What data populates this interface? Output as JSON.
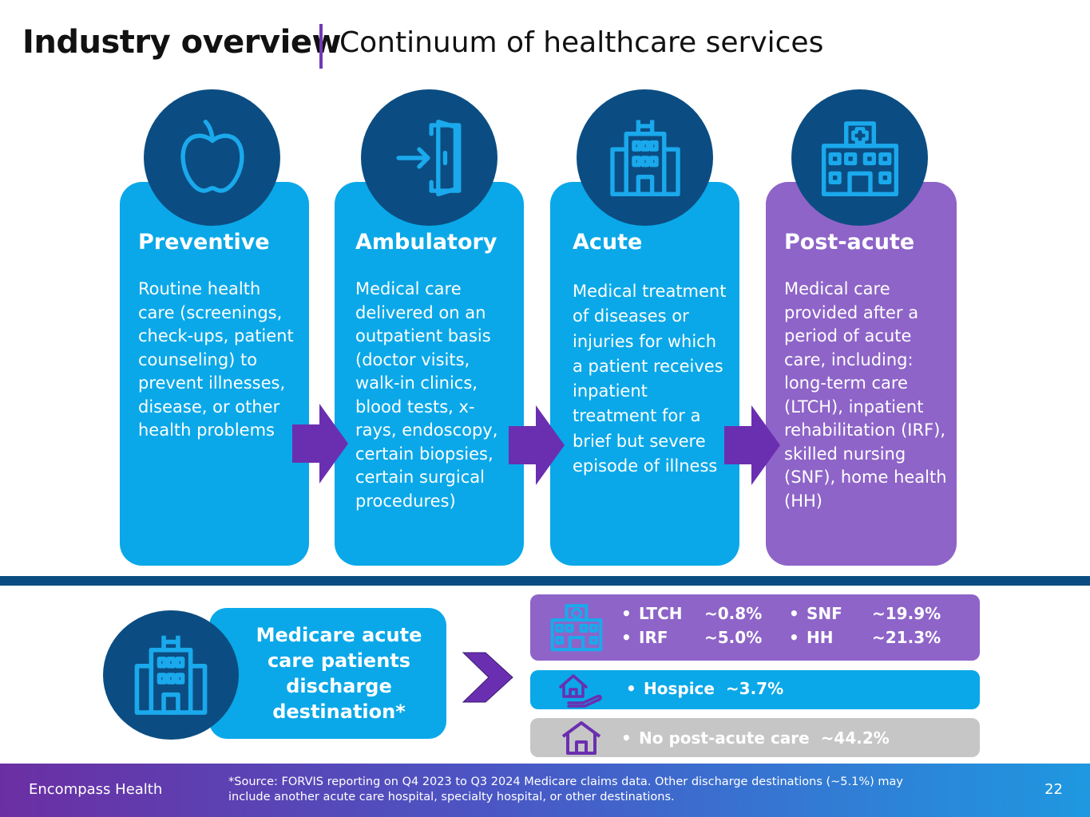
{
  "header": {
    "title": "Industry overview",
    "subtitle": "Continuum of healthcare services"
  },
  "cards": [
    {
      "title": "Preventive",
      "icon": "apple-icon",
      "text": "Routine health care (screenings, check-ups, patient counseling) to prevent illnesses, disease, or other health problems"
    },
    {
      "title": "Ambulatory",
      "icon": "door-enter-icon",
      "text": "Medical care delivered on an outpatient basis (doctor visits, walk-in clinics, blood tests, x-rays, endoscopy, certain biopsies, certain surgical procedures)"
    },
    {
      "title": "Acute",
      "icon": "hospital-building-icon",
      "text": "Medical treatment of diseases or injuries for which a patient receives inpatient treatment for a brief but severe episode of illness"
    },
    {
      "title": "Post-acute",
      "icon": "clinic-icon",
      "text": "Medical care provided after a period of acute care, including: long-term care (LTCH), inpatient rehabilitation (IRF), skilled nursing (SNF), home health (HH)"
    }
  ],
  "medicare": {
    "label": "Medicare acute care patients discharge destination*"
  },
  "destinations": {
    "ltch": {
      "label": "LTCH",
      "value": "~0.8%"
    },
    "irf": {
      "label": "IRF",
      "value": "~5.0%"
    },
    "snf": {
      "label": "SNF",
      "value": "~19.9%"
    },
    "hh": {
      "label": "HH",
      "value": "~21.3%"
    },
    "hospice": "Hospice  ~3.7%",
    "none": "No post-acute care  ~44.2%"
  },
  "footer": {
    "brand": "Encompass Health",
    "note": "*Source: FORVIS reporting on Q4 2023 to Q3 2024 Medicare claims data. Other discharge destinations (~5.1%) may include another acute care hospital, specialty hospital, or other destinations.",
    "page": "22"
  },
  "colors": {
    "blue": "#0aa8e8",
    "navy": "#0b4d82",
    "purple": "#8e64c8",
    "arrow_purple": "#6a2fb0",
    "gray": "#c6c6c6"
  }
}
